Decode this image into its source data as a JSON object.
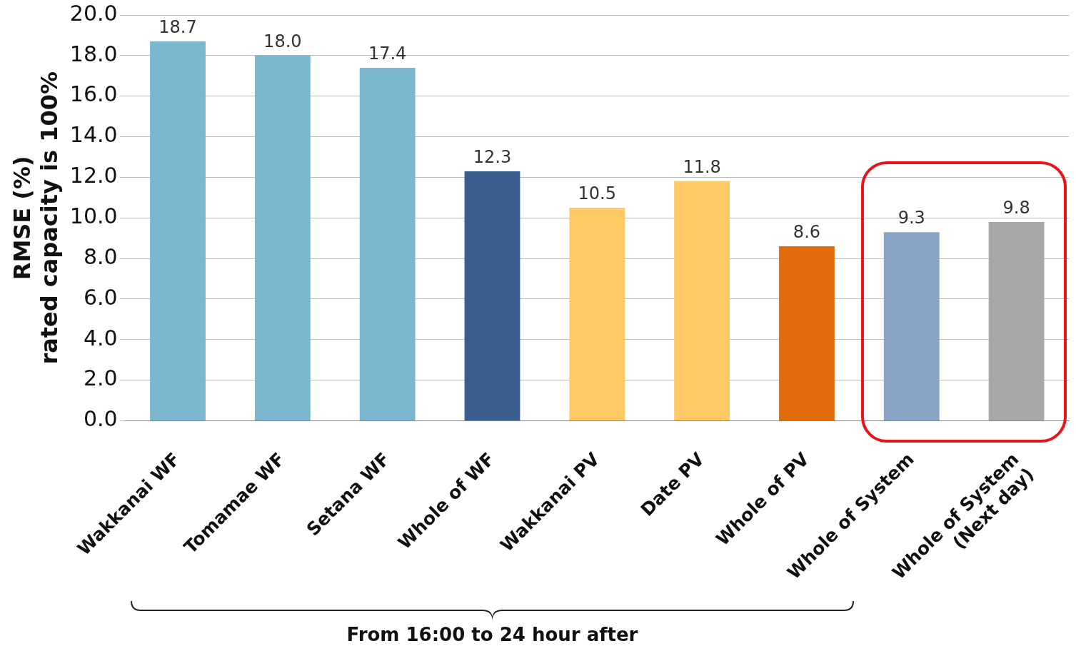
{
  "chart_data": {
    "type": "bar",
    "ylabel": "RMSE (%)\nrated capacity is 100%",
    "categories": [
      "Wakkanai WF",
      "Tomamae WF",
      "Setana WF",
      "Whole of WF",
      "Wakkanai PV",
      "Date PV",
      "Whole of PV",
      "Whole of System",
      "Whole of System\n(Next day)"
    ],
    "values": [
      18.7,
      18.0,
      17.4,
      12.3,
      10.5,
      11.8,
      8.6,
      9.3,
      9.8
    ],
    "colors": [
      "#7bb8cf",
      "#7bb8cf",
      "#7bb8cf",
      "#3a5f8f",
      "#ffc966",
      "#ffc966",
      "#e36c0a",
      "#8aa4c8",
      "#a8a8a8"
    ],
    "ylim": [
      0,
      20
    ],
    "yticks": [
      {
        "value": 0,
        "label": "0.0"
      },
      {
        "value": 2,
        "label": "2.0"
      },
      {
        "value": 4,
        "label": "4.0"
      },
      {
        "value": 6,
        "label": "6.0"
      },
      {
        "value": 8,
        "label": "8.0"
      },
      {
        "value": 10,
        "label": "10.0"
      },
      {
        "value": 12,
        "label": "12.0"
      },
      {
        "value": 14,
        "label": "14.0"
      },
      {
        "value": 16,
        "label": "16.0"
      },
      {
        "value": 18,
        "label": "18.0"
      },
      {
        "value": 20,
        "label": "20.0"
      }
    ],
    "value_labels": [
      "18.7",
      "18.0",
      "17.4",
      "12.3",
      "10.5",
      "11.8",
      "8.6",
      "9.3",
      "9.8"
    ],
    "grid": "y",
    "legend": false,
    "annotations": [
      "From 16:00 to 24 hour after"
    ]
  }
}
